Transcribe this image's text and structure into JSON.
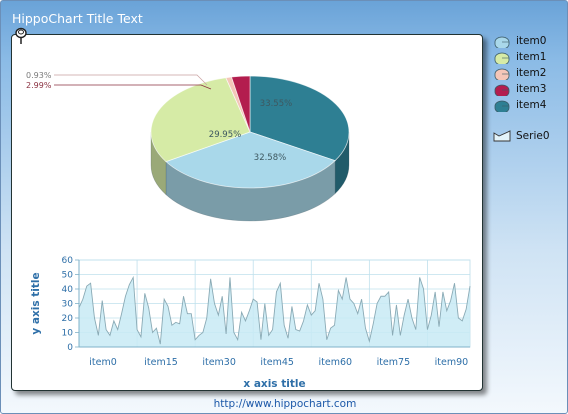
{
  "window": {
    "title": "HippoChart Title Text",
    "footer_link": "http://www.hippochart.com"
  },
  "legend": {
    "items": [
      {
        "label": "item0",
        "color": "#a9d8ea"
      },
      {
        "label": "item1",
        "color": "#d6eba6"
      },
      {
        "label": "item2",
        "color": "#f4c6b8"
      },
      {
        "label": "item3",
        "color": "#b31d4e"
      },
      {
        "label": "item4",
        "color": "#2e7f93"
      }
    ],
    "series_label": "Serie0"
  },
  "chart_data": [
    {
      "type": "pie",
      "labels": [
        "item0",
        "item1",
        "item2",
        "item3",
        "item4"
      ],
      "values": [
        32.58,
        29.95,
        0.93,
        2.99,
        33.55
      ],
      "value_labels": [
        "32.58%",
        "29.95%",
        "0.93%",
        "2.99%",
        "33.55%"
      ],
      "colors": [
        "#a9d8ea",
        "#d6eba6",
        "#f4c6b8",
        "#b31d4e",
        "#2e7f93"
      ],
      "three_d": true
    },
    {
      "type": "area",
      "series": [
        {
          "name": "Serie0",
          "values": [
            27,
            33,
            42,
            44,
            20,
            8,
            32,
            12,
            8,
            18,
            12,
            23,
            35,
            43,
            48,
            12,
            7,
            37,
            27,
            10,
            13,
            2,
            33,
            28,
            15,
            17,
            16,
            35,
            23,
            23,
            5,
            8,
            10,
            20,
            47,
            30,
            22,
            35,
            9,
            48,
            10,
            5,
            24,
            18,
            25,
            33,
            31,
            5,
            30,
            8,
            12,
            38,
            44,
            15,
            6,
            28,
            12,
            11,
            18,
            29,
            22,
            25,
            44,
            33,
            5,
            13,
            15,
            39,
            33,
            48,
            33,
            30,
            23,
            33,
            13,
            4,
            16,
            30,
            35,
            35,
            38,
            8,
            29,
            8,
            22,
            33,
            20,
            12,
            48,
            40,
            12,
            22,
            38,
            14,
            38,
            25,
            32,
            44,
            20,
            18,
            26,
            42
          ],
          "color": "#c8eaf4",
          "line_color": "#8aaab5"
        }
      ],
      "x_tick_labels": [
        "item0",
        "item15",
        "item30",
        "item45",
        "item60",
        "item75",
        "item90"
      ],
      "y_ticks": [
        0,
        10,
        20,
        30,
        40,
        50,
        60
      ],
      "ylim": [
        0,
        60
      ],
      "xlabel": "x axis title",
      "ylabel": "y axis title",
      "grid": true
    }
  ]
}
